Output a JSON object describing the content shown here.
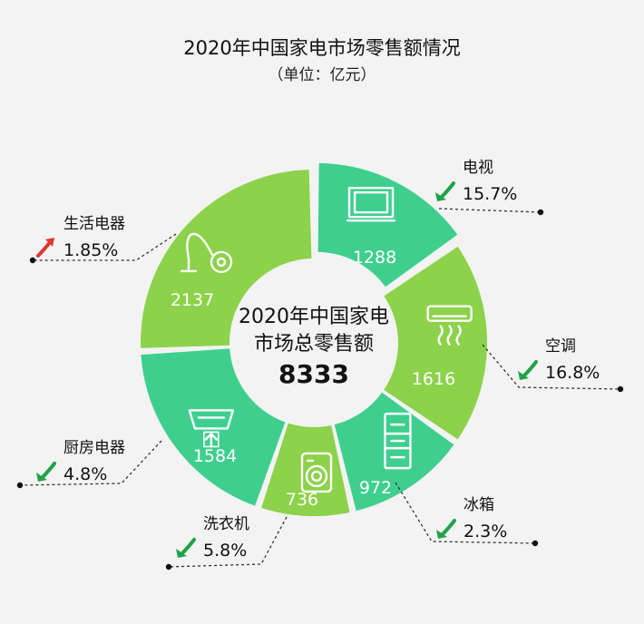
{
  "title": "2020年中国家电市场零售额情况",
  "subtitle": "（单位：亿元）",
  "chart_data": {
    "type": "pie",
    "title": "2020年中国家电市场零售额情况",
    "unit": "（单位：亿元）",
    "center_label": [
      "2020年中国家电",
      "市场总零售额"
    ],
    "total": "8333",
    "segments": [
      {
        "category": "电视",
        "value": 1288,
        "change": "15.7%",
        "trend": "down",
        "icon": "tv-icon",
        "color": "#3ecf8e"
      },
      {
        "category": "空调",
        "value": 1616,
        "change": "16.8%",
        "trend": "down",
        "icon": "air-conditioner-icon",
        "color": "#8cd24a"
      },
      {
        "category": "冰箱",
        "value": 972,
        "change": "2.3%",
        "trend": "down",
        "icon": "fridge-icon",
        "color": "#3ecf8e"
      },
      {
        "category": "洗衣机",
        "value": 736,
        "change": "5.8%",
        "trend": "down",
        "icon": "washing-machine-icon",
        "color": "#8cd24a"
      },
      {
        "category": "厨房电器",
        "value": 1584,
        "change": "4.8%",
        "trend": "down",
        "icon": "range-hood-icon",
        "color": "#3ecf8e"
      },
      {
        "category": "生活电器",
        "value": 2137,
        "change": "1.85%",
        "trend": "up",
        "icon": "vacuum-cleaner-icon",
        "color": "#8cd24a"
      }
    ]
  }
}
